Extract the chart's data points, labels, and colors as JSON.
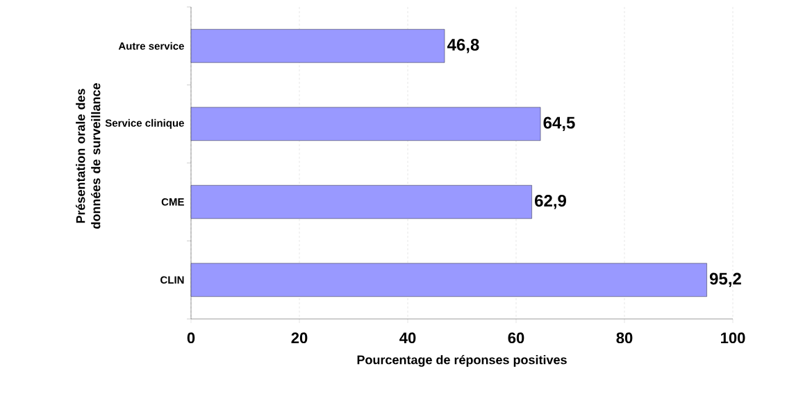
{
  "chart_data": {
    "type": "bar",
    "orientation": "horizontal",
    "xlabel": "Pourcentage de réponses positives",
    "ylabel": "Présentation orale des données de surveillance",
    "categories": [
      "Autre service",
      "Service clinique",
      "CME",
      "CLIN"
    ],
    "values": [
      46.8,
      64.5,
      62.9,
      95.2
    ],
    "value_labels": [
      "46,8",
      "64,5",
      "62,9",
      "95,2"
    ],
    "color": "#9999ff",
    "xlim": [
      0,
      100
    ],
    "xticks": [
      0,
      20,
      40,
      60,
      80,
      100
    ],
    "grid": "x"
  }
}
